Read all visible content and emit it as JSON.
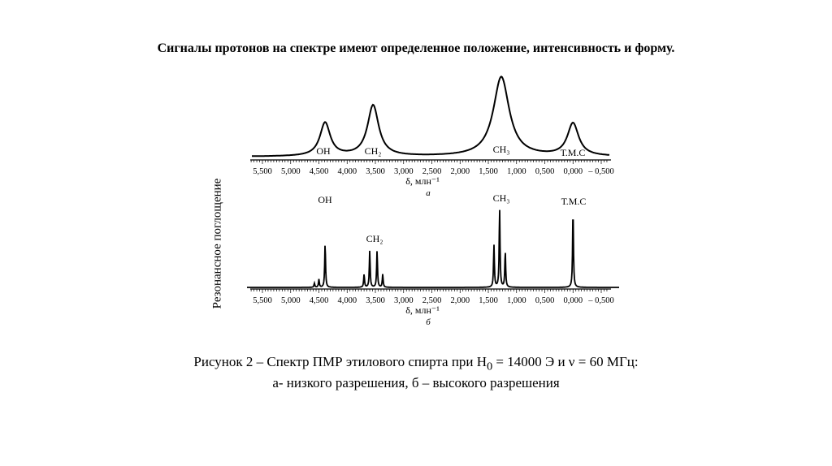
{
  "heading": "Сигналы протонов на спектре  имеют определенное положение, интенсивность и форму.",
  "caption": {
    "line1_prefix": "Рисунок 2 – Спектр ПМР этилового спирта при H",
    "line1_sub": "0",
    "line1_suffix": " = 14000 Э и ν = 60 МГц:",
    "line2": "а- низкого разрешения, б – высокого разрешения"
  },
  "chart_data": [
    {
      "type": "line",
      "title": "а",
      "xlabel": "δ, млн⁻¹",
      "ylabel": "Резонансное поглощение",
      "xlim": [
        5.5,
        -0.5
      ],
      "tick_values": [
        5.5,
        5.0,
        4.5,
        4.0,
        3.5,
        3.0,
        2.5,
        2.0,
        1.5,
        1.0,
        0.5,
        0.0,
        -0.5
      ],
      "tick_labels": [
        "5,500",
        "5,000",
        "4,500",
        "4,000",
        "3,500",
        "3,000",
        "2,500",
        "2,000",
        "1,500",
        "1,000",
        "0,500",
        "0,000",
        "– 0,500"
      ],
      "peaks": [
        {
          "label": "OH",
          "delta": 4.39,
          "intensity": 0.42,
          "width": 0.11
        },
        {
          "label": "CH₂",
          "delta": 3.54,
          "intensity": 0.64,
          "width": 0.12
        },
        {
          "label": "CH₃",
          "delta": 1.27,
          "intensity": 1.0,
          "width": 0.17
        },
        {
          "label": "Т.М.С",
          "delta": 0.0,
          "intensity": 0.41,
          "width": 0.12
        }
      ]
    },
    {
      "type": "line",
      "title": "б",
      "xlabel": "δ, млн⁻¹",
      "ylabel": "Резонансное поглощение",
      "xlim": [
        5.5,
        -0.5
      ],
      "tick_values": [
        5.5,
        5.0,
        4.5,
        4.0,
        3.5,
        3.0,
        2.5,
        2.0,
        1.5,
        1.0,
        0.5,
        0.0,
        -0.5
      ],
      "tick_labels": [
        "5,500",
        "5,000",
        "4,500",
        "4,000",
        "3,500",
        "3,000",
        "2,500",
        "2,000",
        "1,500",
        "1,000",
        "0,500",
        "0,000",
        "– 0,500"
      ],
      "groups": [
        {
          "label": "OH",
          "lines": [
            {
              "delta": 4.58,
              "intensity": 0.05
            },
            {
              "delta": 4.5,
              "intensity": 0.1
            },
            {
              "delta": 4.39,
              "intensity": 0.54
            }
          ]
        },
        {
          "label": "CH₂",
          "lines": [
            {
              "delta": 3.7,
              "intensity": 0.16
            },
            {
              "delta": 3.6,
              "intensity": 0.45
            },
            {
              "delta": 3.47,
              "intensity": 0.45
            },
            {
              "delta": 3.37,
              "intensity": 0.16
            }
          ]
        },
        {
          "label": "CH₃",
          "lines": [
            {
              "delta": 1.4,
              "intensity": 0.52
            },
            {
              "delta": 1.3,
              "intensity": 0.97
            },
            {
              "delta": 1.2,
              "intensity": 0.44
            }
          ]
        },
        {
          "label": "Т.М.С",
          "lines": [
            {
              "delta": 0.0,
              "intensity": 0.96
            }
          ]
        }
      ]
    }
  ]
}
